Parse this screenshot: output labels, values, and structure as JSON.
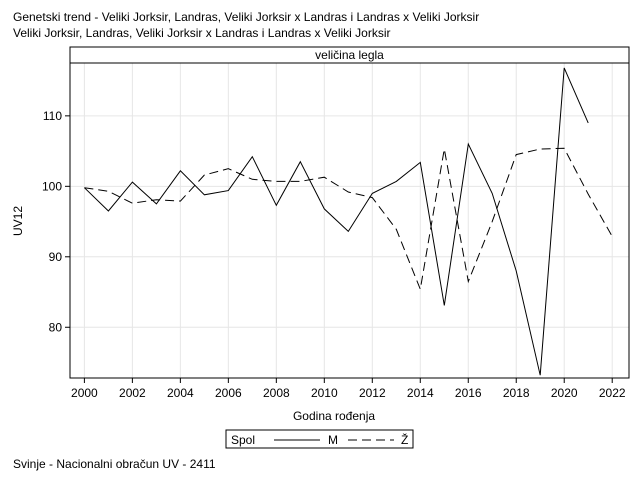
{
  "title_lines": [
    "Genetski trend - Veliki Jorksir, Landras, Veliki Jorksir x Landras i Landras x Veliki Jorksir",
    "Veliki Jorksir, Landras, Veliki Jorksir x Landras i Landras x Veliki Jorksir"
  ],
  "footnote": "Svinje - Nacionalni obračun UV - 2411",
  "colors": {
    "line": "#000000",
    "grid": "#e6e6e6",
    "panel_header_bg": "#ffffff"
  },
  "chart_data": {
    "type": "line",
    "panel_header": "veličina legla",
    "xlabel": "Godina rođenja",
    "ylabel": "UV12",
    "xlim": [
      1999.4,
      2022.7
    ],
    "ylim": [
      72.8,
      117.5
    ],
    "x_ticks": [
      2000,
      2002,
      2004,
      2006,
      2008,
      2010,
      2012,
      2014,
      2016,
      2018,
      2020,
      2022
    ],
    "y_ticks": [
      80,
      90,
      100,
      110
    ],
    "grid": true,
    "legend": {
      "title": "Spol",
      "position": "bottom-center"
    },
    "series": [
      {
        "name": "M",
        "style": "solid",
        "x": [
          2000,
          2001,
          2002,
          2003,
          2004,
          2005,
          2006,
          2007,
          2008,
          2009,
          2010,
          2011,
          2012,
          2013,
          2014,
          2015,
          2016,
          2017,
          2018,
          2019,
          2020,
          2021
        ],
        "values": [
          99.8,
          96.5,
          100.6,
          97.5,
          102.2,
          98.8,
          99.4,
          104.2,
          97.3,
          103.5,
          96.8,
          93.6,
          99.0,
          100.7,
          103.4,
          83.1,
          106.0,
          99.0,
          88.0,
          73.2,
          116.8,
          109.0
        ]
      },
      {
        "name": "Ž",
        "style": "dashed",
        "x": [
          2000,
          2001,
          2002,
          2003,
          2004,
          2005,
          2006,
          2007,
          2008,
          2009,
          2010,
          2011,
          2012,
          2013,
          2014,
          2015,
          2016,
          2017,
          2018,
          2019,
          2020,
          2021,
          2022
        ],
        "values": [
          99.8,
          99.3,
          97.6,
          98.1,
          97.9,
          101.6,
          102.5,
          101.0,
          100.7,
          100.7,
          101.3,
          99.2,
          98.4,
          93.9,
          85.4,
          105.3,
          86.5,
          95.0,
          104.5,
          105.3,
          105.4,
          98.9,
          92.9
        ]
      }
    ]
  }
}
